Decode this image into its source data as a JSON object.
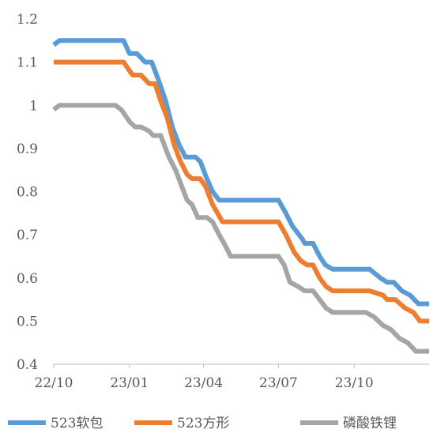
{
  "chart_data": {
    "type": "line",
    "title": "",
    "xlabel": "",
    "ylabel": "",
    "ylim": [
      0.4,
      1.2
    ],
    "yticks": [
      0.4,
      0.5,
      0.6,
      0.7,
      0.8,
      0.9,
      1.0,
      1.1,
      1.2
    ],
    "ytick_labels": [
      "0.4",
      "0.5",
      "0.6",
      "0.7",
      "0.8",
      "0.9",
      "1",
      "1.1",
      "1.2"
    ],
    "x_range": [
      "2022-10-01",
      "2023-12-31"
    ],
    "xtick_labels": [
      "22/10",
      "23/01",
      "23/04",
      "23/07",
      "23/10"
    ],
    "xtick_dates": [
      "2022-10-01",
      "2023-01-01",
      "2023-04-01",
      "2023-07-01",
      "2023-10-01"
    ],
    "grid": false,
    "legend_position": "bottom",
    "series": [
      {
        "name": "523软包",
        "color": "#5b9bd5",
        "points": [
          [
            "2022-10-01",
            1.14
          ],
          [
            "2022-10-08",
            1.15
          ],
          [
            "2022-12-25",
            1.15
          ],
          [
            "2023-01-01",
            1.12
          ],
          [
            "2023-01-10",
            1.12
          ],
          [
            "2023-01-20",
            1.1
          ],
          [
            "2023-01-28",
            1.1
          ],
          [
            "2023-02-05",
            1.06
          ],
          [
            "2023-02-14",
            1.01
          ],
          [
            "2023-02-22",
            0.95
          ],
          [
            "2023-03-02",
            0.91
          ],
          [
            "2023-03-10",
            0.88
          ],
          [
            "2023-03-22",
            0.88
          ],
          [
            "2023-03-28",
            0.87
          ],
          [
            "2023-04-05",
            0.83
          ],
          [
            "2023-04-12",
            0.8
          ],
          [
            "2023-04-20",
            0.78
          ],
          [
            "2023-07-01",
            0.78
          ],
          [
            "2023-07-10",
            0.75
          ],
          [
            "2023-07-18",
            0.72
          ],
          [
            "2023-07-30",
            0.69
          ],
          [
            "2023-08-02",
            0.68
          ],
          [
            "2023-08-12",
            0.68
          ],
          [
            "2023-08-20",
            0.65
          ],
          [
            "2023-08-27",
            0.63
          ],
          [
            "2023-09-05",
            0.62
          ],
          [
            "2023-10-20",
            0.62
          ],
          [
            "2023-11-02",
            0.6
          ],
          [
            "2023-11-10",
            0.59
          ],
          [
            "2023-11-18",
            0.59
          ],
          [
            "2023-11-28",
            0.57
          ],
          [
            "2023-12-08",
            0.56
          ],
          [
            "2023-12-18",
            0.54
          ],
          [
            "2023-12-31",
            0.54
          ]
        ]
      },
      {
        "name": "523方形",
        "color": "#ed7d31",
        "points": [
          [
            "2022-10-01",
            1.1
          ],
          [
            "2022-12-25",
            1.1
          ],
          [
            "2023-01-01",
            1.08
          ],
          [
            "2023-01-05",
            1.07
          ],
          [
            "2023-01-15",
            1.07
          ],
          [
            "2023-01-25",
            1.05
          ],
          [
            "2023-02-01",
            1.05
          ],
          [
            "2023-02-08",
            1.01
          ],
          [
            "2023-02-16",
            0.97
          ],
          [
            "2023-02-24",
            0.91
          ],
          [
            "2023-03-04",
            0.87
          ],
          [
            "2023-03-12",
            0.84
          ],
          [
            "2023-03-18",
            0.83
          ],
          [
            "2023-03-28",
            0.83
          ],
          [
            "2023-04-04",
            0.81
          ],
          [
            "2023-04-12",
            0.77
          ],
          [
            "2023-04-18",
            0.75
          ],
          [
            "2023-04-24",
            0.73
          ],
          [
            "2023-07-01",
            0.73
          ],
          [
            "2023-07-10",
            0.7
          ],
          [
            "2023-07-20",
            0.66
          ],
          [
            "2023-07-28",
            0.64
          ],
          [
            "2023-08-05",
            0.63
          ],
          [
            "2023-08-12",
            0.63
          ],
          [
            "2023-08-20",
            0.6
          ],
          [
            "2023-08-28",
            0.58
          ],
          [
            "2023-09-05",
            0.57
          ],
          [
            "2023-10-20",
            0.57
          ],
          [
            "2023-11-05",
            0.56
          ],
          [
            "2023-11-10",
            0.55
          ],
          [
            "2023-11-20",
            0.55
          ],
          [
            "2023-12-02",
            0.53
          ],
          [
            "2023-12-12",
            0.52
          ],
          [
            "2023-12-20",
            0.5
          ],
          [
            "2023-12-31",
            0.5
          ]
        ]
      },
      {
        "name": "磷酸铁锂",
        "color": "#a5a5a5",
        "points": [
          [
            "2022-10-01",
            0.99
          ],
          [
            "2022-10-08",
            1.0
          ],
          [
            "2022-12-15",
            1.0
          ],
          [
            "2022-12-22",
            0.99
          ],
          [
            "2023-01-02",
            0.96
          ],
          [
            "2023-01-08",
            0.95
          ],
          [
            "2023-01-15",
            0.95
          ],
          [
            "2023-01-25",
            0.94
          ],
          [
            "2023-01-30",
            0.93
          ],
          [
            "2023-02-08",
            0.93
          ],
          [
            "2023-02-18",
            0.88
          ],
          [
            "2023-02-26",
            0.85
          ],
          [
            "2023-03-08",
            0.8
          ],
          [
            "2023-03-12",
            0.78
          ],
          [
            "2023-03-18",
            0.77
          ],
          [
            "2023-03-25",
            0.74
          ],
          [
            "2023-04-05",
            0.74
          ],
          [
            "2023-04-12",
            0.73
          ],
          [
            "2023-04-20",
            0.7
          ],
          [
            "2023-04-26",
            0.68
          ],
          [
            "2023-05-04",
            0.65
          ],
          [
            "2023-07-01",
            0.65
          ],
          [
            "2023-07-08",
            0.63
          ],
          [
            "2023-07-15",
            0.59
          ],
          [
            "2023-07-25",
            0.58
          ],
          [
            "2023-08-02",
            0.57
          ],
          [
            "2023-08-12",
            0.57
          ],
          [
            "2023-08-20",
            0.55
          ],
          [
            "2023-08-28",
            0.53
          ],
          [
            "2023-09-05",
            0.52
          ],
          [
            "2023-10-15",
            0.52
          ],
          [
            "2023-10-25",
            0.51
          ],
          [
            "2023-11-05",
            0.49
          ],
          [
            "2023-11-15",
            0.48
          ],
          [
            "2023-11-25",
            0.46
          ],
          [
            "2023-12-05",
            0.45
          ],
          [
            "2023-12-15",
            0.43
          ],
          [
            "2023-12-31",
            0.43
          ]
        ]
      }
    ]
  }
}
